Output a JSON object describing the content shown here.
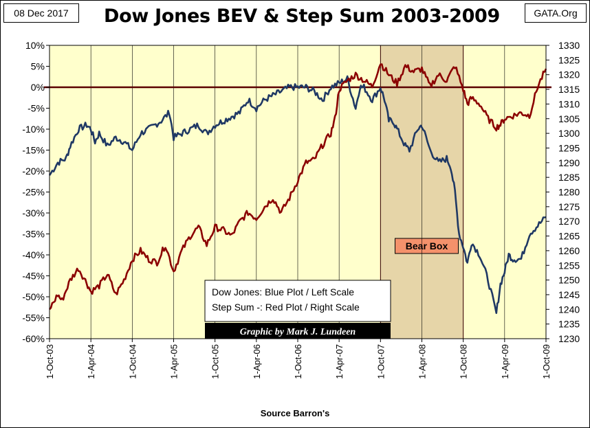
{
  "header": {
    "date": "08 Dec 2017",
    "source_tag": "GATA.Org",
    "title": "Dow Jones BEV & Step Sum 2003-2009"
  },
  "footer": {
    "xlabel": "Source Barron's"
  },
  "legend": {
    "line1": "Dow Jones: Blue Plot / Left Scale",
    "line2": "Step Sum -: Red Plot / Right Scale",
    "credit": "Graphic by Mark J. Lundeen"
  },
  "bear_box": {
    "label": "Bear Box",
    "start": 4.0,
    "end": 5.0
  },
  "colors": {
    "plot_bg": "#ffffcc",
    "blue": "#1f3864",
    "red": "#8b0000",
    "bear_fill": "#e6d5a8",
    "bear_label": "#f4916b"
  },
  "chart_data": {
    "type": "line",
    "title": "Dow Jones BEV & Step Sum 2003-2009",
    "xlabel": "Source Barron's",
    "x_ticks": [
      "1-Oct-03",
      "1-Apr-04",
      "1-Oct-04",
      "1-Apr-05",
      "1-Oct-05",
      "1-Apr-06",
      "1-Oct-06",
      "1-Apr-07",
      "1-Oct-07",
      "1-Apr-08",
      "1-Oct-08",
      "1-Apr-09",
      "1-Oct-09"
    ],
    "xlim": [
      0,
      6
    ],
    "left_axis": {
      "ylim": [
        -60,
        10
      ],
      "ticks": [
        "10%",
        "5%",
        "0%",
        "-5%",
        "-10%",
        "-15%",
        "-20%",
        "-25%",
        "-30%",
        "-35%",
        "-40%",
        "-45%",
        "-50%",
        "-55%",
        "-60%"
      ]
    },
    "right_axis": {
      "ylim": [
        1230,
        1330
      ],
      "ticks": [
        "1330",
        "1325",
        "1320",
        "1315",
        "1310",
        "1305",
        "1300",
        "1295",
        "1290",
        "1285",
        "1280",
        "1275",
        "1270",
        "1265",
        "1260",
        "1255",
        "1250",
        "1245",
        "1240",
        "1235",
        "1230"
      ]
    },
    "series": [
      {
        "name": "Dow Jones BEV",
        "axis": "left",
        "color": "#1f3864",
        "x": [
          0.0,
          0.1,
          0.2,
          0.25,
          0.35,
          0.45,
          0.5,
          0.55,
          0.6,
          0.7,
          0.8,
          0.9,
          1.0,
          1.1,
          1.2,
          1.35,
          1.45,
          1.5,
          1.6,
          1.7,
          1.8,
          1.9,
          2.0,
          2.1,
          2.2,
          2.3,
          2.4,
          2.5,
          2.6,
          2.7,
          2.8,
          2.9,
          3.0,
          3.1,
          3.2,
          3.3,
          3.4,
          3.5,
          3.6,
          3.7,
          3.75,
          3.8,
          3.9,
          4.0,
          4.05,
          4.1,
          4.15,
          4.2,
          4.3,
          4.35,
          4.45,
          4.5,
          4.6,
          4.7,
          4.8,
          4.85,
          4.9,
          4.95,
          5.0,
          5.05,
          5.1,
          5.2,
          5.3,
          5.4,
          5.45,
          5.5,
          5.55,
          5.6,
          5.7,
          5.8,
          5.9,
          6.0
        ],
        "values": [
          -21,
          -18,
          -17,
          -14,
          -10,
          -9,
          -10,
          -13,
          -11,
          -14,
          -12,
          -13,
          -15,
          -11,
          -10,
          -8,
          -6,
          -12,
          -11,
          -10,
          -9,
          -11,
          -9,
          -8,
          -7,
          -6,
          -3,
          -5,
          -3,
          -2,
          -1,
          0,
          0,
          0,
          -1,
          -3,
          0,
          1,
          2,
          -5,
          0,
          0,
          -3,
          0,
          -3,
          -8,
          -8,
          -10,
          -14,
          -15,
          -10,
          -9,
          -15,
          -18,
          -17,
          -19,
          -25,
          -35,
          -38,
          -42,
          -37,
          -40,
          -46,
          -54,
          -47,
          -44,
          -40,
          -41,
          -41,
          -35,
          -33,
          -31
        ]
      },
      {
        "name": "Step Sum",
        "axis": "right",
        "color": "#8b0000",
        "x": [
          0.0,
          0.1,
          0.15,
          0.25,
          0.35,
          0.45,
          0.5,
          0.6,
          0.7,
          0.8,
          0.9,
          1.0,
          1.1,
          1.2,
          1.3,
          1.4,
          1.5,
          1.6,
          1.7,
          1.8,
          1.9,
          2.0,
          2.1,
          2.2,
          2.3,
          2.4,
          2.5,
          2.6,
          2.7,
          2.8,
          2.9,
          3.0,
          3.1,
          3.2,
          3.3,
          3.4,
          3.45,
          3.5,
          3.6,
          3.7,
          3.8,
          3.9,
          4.0,
          4.1,
          4.2,
          4.3,
          4.4,
          4.5,
          4.6,
          4.7,
          4.8,
          4.9,
          5.0,
          5.05,
          5.1,
          5.2,
          5.3,
          5.4,
          5.45,
          5.5,
          5.6,
          5.7,
          5.8,
          5.9,
          6.0
        ],
        "values": [
          1240,
          1245,
          1243,
          1250,
          1254,
          1249,
          1246,
          1248,
          1252,
          1245,
          1250,
          1257,
          1260,
          1257,
          1256,
          1262,
          1253,
          1260,
          1265,
          1268,
          1262,
          1268,
          1267,
          1265,
          1270,
          1273,
          1271,
          1275,
          1278,
          1273,
          1278,
          1284,
          1290,
          1291,
          1296,
          1300,
          1305,
          1315,
          1318,
          1320,
          1318,
          1316,
          1324,
          1320,
          1317,
          1323,
          1321,
          1322,
          1316,
          1320,
          1318,
          1323,
          1315,
          1310,
          1312,
          1310,
          1305,
          1302,
          1303,
          1305,
          1306,
          1307,
          1306,
          1316,
          1322
        ]
      }
    ]
  }
}
